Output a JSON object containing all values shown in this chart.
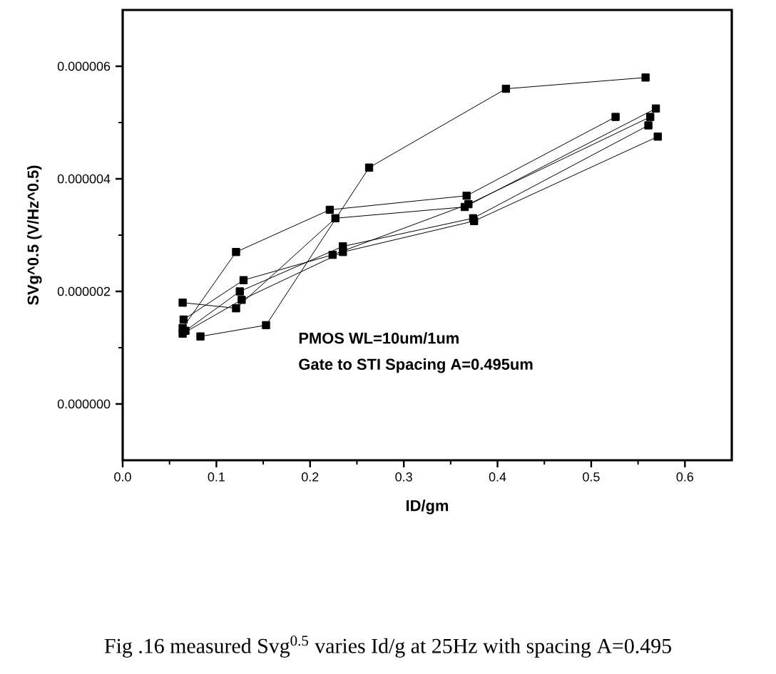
{
  "chart_data": {
    "type": "line",
    "xlabel": "ID/gm",
    "ylabel": "SVg^0.5 (V/Hz^0.5)",
    "annotations": [
      "PMOS WL=10um/1um",
      "Gate to STI Spacing A=0.495um",
      "Fig .16 measured Svg$^{0.5}$ varies Id/g at 25Hz with spacing A=0.495"
    ],
    "series": [
      {
        "color": "#000000",
        "x": [
          0.083,
          0.153,
          0.263,
          0.409,
          0.558
        ],
        "values": [
          1.2e-06,
          1.4e-06,
          4.2e-06,
          5.6e-06,
          5.8e-06
        ]
      },
      {
        "color": "#000000",
        "x": [
          0.064,
          0.121,
          0.221,
          0.367,
          0.526
        ],
        "values": [
          1.35e-06,
          2.7e-06,
          3.45e-06,
          3.7e-06,
          5.1e-06
        ]
      },
      {
        "color": "#000000",
        "x": [
          0.064,
          0.121,
          0.227,
          0.365,
          0.569
        ],
        "values": [
          1.8e-06,
          1.7e-06,
          3.3e-06,
          3.5e-06,
          5.25e-06
        ]
      },
      {
        "color": "#000000",
        "x": [
          0.065,
          0.129,
          0.224,
          0.369,
          0.563
        ],
        "values": [
          1.5e-06,
          2.2e-06,
          2.65e-06,
          3.55e-06,
          5.1e-06
        ]
      },
      {
        "color": "#000000",
        "x": [
          0.067,
          0.125,
          0.235,
          0.374,
          0.561
        ],
        "values": [
          1.3e-06,
          2e-06,
          2.8e-06,
          3.3e-06,
          4.95e-06
        ]
      },
      {
        "color": "#000000",
        "x": [
          0.064,
          0.127,
          0.235,
          0.375,
          0.571
        ],
        "values": [
          1.25e-06,
          1.85e-06,
          2.7e-06,
          3.25e-06,
          4.75e-06
        ]
      }
    ],
    "xlim": [
      0,
      0.65
    ],
    "ylim": [
      -1e-06,
      7e-06
    ],
    "xticks": [
      {
        "value": 0,
        "label": "0.0"
      },
      {
        "value": 0.1,
        "label": "0.1"
      },
      {
        "value": 0.2,
        "label": "0.2"
      },
      {
        "value": 0.3,
        "label": "0.3"
      },
      {
        "value": 0.4,
        "label": "0.4"
      },
      {
        "value": 0.5,
        "label": "0.5"
      },
      {
        "value": 0.6,
        "label": "0.6"
      }
    ],
    "yticks": [
      {
        "value": 0,
        "label": "0.000000"
      },
      {
        "value": 2e-06,
        "label": "0.000002"
      },
      {
        "value": 4e-06,
        "label": "0.000004"
      },
      {
        "value": 6e-06,
        "label": "0.000006"
      }
    ],
    "marker": "square",
    "line_style": "solid"
  }
}
